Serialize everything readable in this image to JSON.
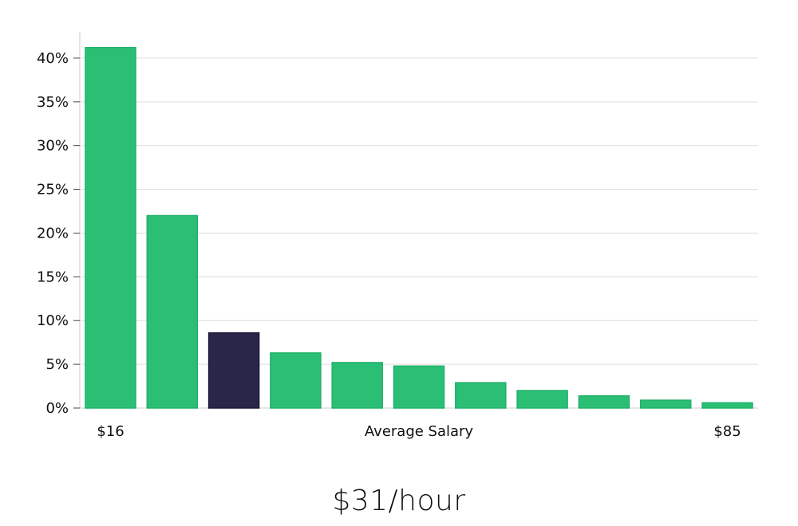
{
  "chart_data": {
    "type": "bar",
    "title": "",
    "xlabel": "Average Salary",
    "ylabel": "",
    "x_tick_labels": [
      "$16",
      "$85"
    ],
    "y_tick_labels": [
      "0%",
      "5%",
      "10%",
      "15%",
      "20%",
      "25%",
      "30%",
      "35%",
      "40%"
    ],
    "ylim": [
      0,
      43
    ],
    "grid": "horizontal",
    "values": [
      41.2,
      22.0,
      8.6,
      6.3,
      5.2,
      4.8,
      2.9,
      2.0,
      1.4,
      0.9,
      0.6
    ],
    "highlight_index": 2,
    "colors": {
      "bar": "#2bbf76",
      "bar_edge": "#22b06a",
      "highlight": "#29264a",
      "grid": "#dddddd",
      "axis": "#cccccc"
    }
  },
  "footer": {
    "value": "$31/hour"
  }
}
